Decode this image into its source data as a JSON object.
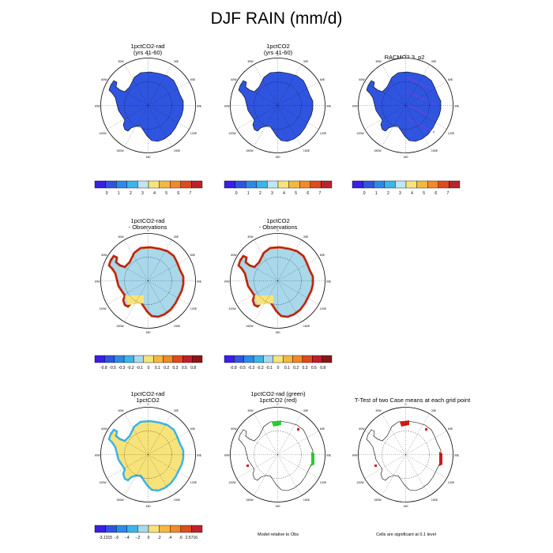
{
  "figure": {
    "title": "DJF RAIN (mm/d)"
  },
  "panels": [
    {
      "id": "p1",
      "title_line1": "1pctCO2-rad",
      "title_line2": "(yrs 41-60)",
      "fill": "#2f55e0",
      "pattern": "solid"
    },
    {
      "id": "p2",
      "title_line1": "1pctCO2",
      "title_line2": "(yrs 41-60)",
      "fill": "#2f55e0",
      "pattern": "solid"
    },
    {
      "id": "p3",
      "title_line1": "RACMO2.3_p2",
      "title_line2": "",
      "fill": "#2f55e0",
      "pattern": "dots"
    },
    {
      "id": "p4",
      "title_line1": "1pctCO2-rad",
      "title_line2": "- Observations",
      "fill": "#a8d8ea",
      "pattern": "diff"
    },
    {
      "id": "p5",
      "title_line1": "1pctCO2",
      "title_line2": "- Observations",
      "fill": "#a8d8ea",
      "pattern": "diff"
    },
    {
      "id": "p6",
      "title_line1": "1pctCO2-rad",
      "title_line2": "1pctCO2",
      "fill": "#f7e37a",
      "pattern": "yellow"
    },
    {
      "id": "p7",
      "title_line1": "1pctCO2-rad (green)",
      "title_line2": "1pctCO2 (red)",
      "fill": "none",
      "pattern": "outline-green"
    },
    {
      "id": "p8",
      "title_line1": "T-Test of two Case means at each grid point",
      "title_line2": "",
      "fill": "none",
      "pattern": "outline-red"
    }
  ],
  "map_labels": {
    "top": "0",
    "bottom": "180",
    "left": "90W",
    "right": "90E",
    "tl1": "30W",
    "tl2": "60W",
    "tr1": "30E",
    "tr2": "60E",
    "bl1": "120W",
    "bl2": "150W",
    "br1": "120E",
    "br2": "150E"
  },
  "colorbars": {
    "abs": {
      "colors": [
        "#3a1fe6",
        "#2f55e0",
        "#2f8ae6",
        "#3cb4e8",
        "#bfe6f2",
        "#f7e37a",
        "#f5b73e",
        "#f08a2a",
        "#e04a1e",
        "#c0202a"
      ],
      "labels": [
        "0",
        "1",
        "2",
        "3",
        "4",
        "5",
        "6",
        "7"
      ]
    },
    "diff": {
      "colors": [
        "#3a1fe6",
        "#2f55e0",
        "#2f8ae6",
        "#3cb4e8",
        "#a8d8ea",
        "#f7e37a",
        "#f5b73e",
        "#f08a2a",
        "#e04a1e",
        "#c0202a",
        "#8a1518"
      ],
      "labels": [
        "-0.8",
        "-0.5",
        "-0.3",
        "-0.2",
        "-0.1",
        "0",
        "0.1",
        "0.2",
        "0.3",
        "0.5",
        "0.8"
      ]
    },
    "rad": {
      "colors": [
        "#3a1fe6",
        "#2f55e0",
        "#2f8ae6",
        "#3cb4e8",
        "#a8d8ea",
        "#f7e37a",
        "#f5b73e",
        "#f08a2a",
        "#e04a1e",
        "#c0202a"
      ],
      "labels": [
        "-3.1315",
        "-.6",
        "-.4",
        "-.2",
        "0",
        ".2",
        ".4",
        ".6",
        "2.5716"
      ]
    }
  },
  "footnotes": {
    "model_relative": "Model relative to Obs",
    "cells_sig": "Cells are significant at 0.1 level"
  }
}
